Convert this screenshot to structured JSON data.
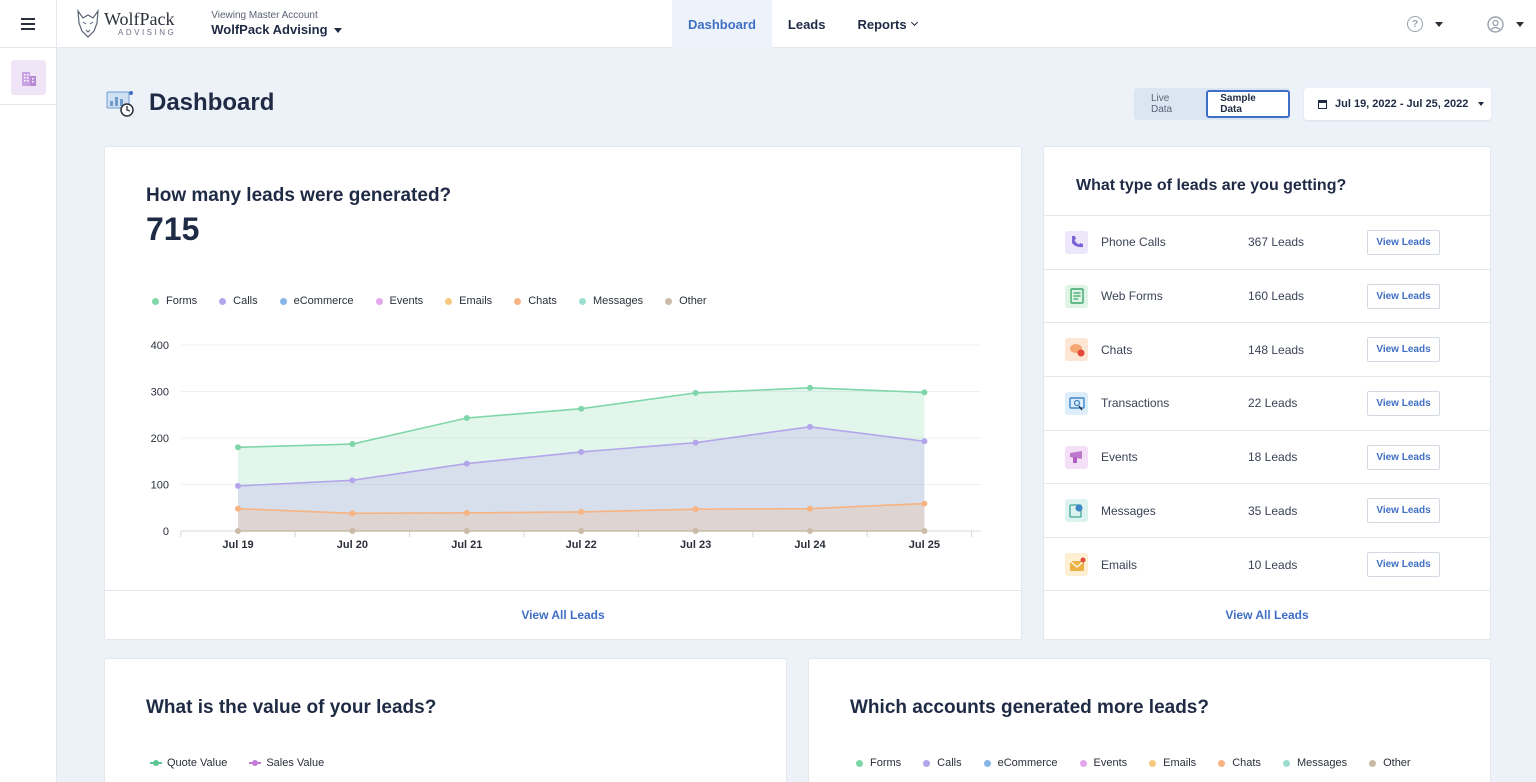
{
  "header": {
    "brand_name": "WolfPack",
    "brand_sub": "ADVISING",
    "account_label": "Viewing Master Account",
    "account_value": "WolfPack Advising",
    "nav": [
      {
        "label": "Dashboard",
        "active": true
      },
      {
        "label": "Leads",
        "active": false
      },
      {
        "label": "Reports",
        "active": false
      }
    ]
  },
  "page": {
    "title": "Dashboard",
    "toggle": {
      "live": "Live Data",
      "sample": "Sample Data"
    },
    "date_range": "Jul 19, 2022 - Jul 25, 2022"
  },
  "leads_card": {
    "title": "How many leads were generated?",
    "total": "715",
    "legend": [
      {
        "name": "Forms",
        "color": "#7fd6a9"
      },
      {
        "name": "Calls",
        "color": "#b3a6ea"
      },
      {
        "name": "eCommerce",
        "color": "#86b5e8"
      },
      {
        "name": "Events",
        "color": "#e3a6ec"
      },
      {
        "name": "Emails",
        "color": "#f6c97e"
      },
      {
        "name": "Chats",
        "color": "#f7b382"
      },
      {
        "name": "Messages",
        "color": "#9ddcd0"
      },
      {
        "name": "Other",
        "color": "#c9bba6"
      }
    ],
    "footer": "View All Leads"
  },
  "chart_data": {
    "type": "area",
    "title": "",
    "categories": [
      "Jul 19",
      "Jul 20",
      "Jul 21",
      "Jul 22",
      "Jul 23",
      "Jul 24",
      "Jul 25"
    ],
    "yticks": [
      "0",
      "100",
      "200",
      "300",
      "400"
    ],
    "ylim": [
      0,
      400
    ],
    "series": [
      {
        "name": "Forms",
        "color": "#7fd6a9",
        "values": [
          180,
          187,
          243,
          263,
          297,
          308,
          298
        ]
      },
      {
        "name": "Calls",
        "color": "#b3a6ea",
        "values": [
          97,
          109,
          145,
          170,
          190,
          224,
          193
        ]
      },
      {
        "name": "Chats",
        "color": "#f7b382",
        "values": [
          48,
          38,
          39,
          41,
          47,
          48,
          59
        ]
      },
      {
        "name": "Other",
        "color": "#c9bba6",
        "values": [
          0,
          0,
          0,
          0,
          0,
          0,
          0
        ]
      }
    ]
  },
  "types_card": {
    "title": "What type of leads are you getting?",
    "button_label": "View Leads",
    "rows": [
      {
        "name": "Phone Calls",
        "count": "367 Leads",
        "icon": "phone-icon",
        "bg": "#ece7fb",
        "fg": "#7d65d6"
      },
      {
        "name": "Web Forms",
        "count": "160 Leads",
        "icon": "form-icon",
        "bg": "#dff3e6",
        "fg": "#3ea86a"
      },
      {
        "name": "Chats",
        "count": "148 Leads",
        "icon": "chat-icon",
        "bg": "#fde6d4",
        "fg": "#ef8a4a"
      },
      {
        "name": "Transactions",
        "count": "22 Leads",
        "icon": "transaction-icon",
        "bg": "#ddeefa",
        "fg": "#3f86c9"
      },
      {
        "name": "Events",
        "count": "18 Leads",
        "icon": "event-icon",
        "bg": "#f4e0f6",
        "fg": "#b15fc2"
      },
      {
        "name": "Messages",
        "count": "35 Leads",
        "icon": "message-icon",
        "bg": "#dcf3ef",
        "fg": "#3fa79a"
      },
      {
        "name": "Emails",
        "count": "10 Leads",
        "icon": "email-icon",
        "bg": "#fdf0d2",
        "fg": "#e8a82e"
      }
    ],
    "footer": "View All Leads"
  },
  "value_card": {
    "title": "What is the value of your leads?",
    "legend": [
      {
        "name": "Quote Value",
        "color": "#5bc795"
      },
      {
        "name": "Sales Value",
        "color": "#c47bd6"
      }
    ]
  },
  "accounts_card": {
    "title": "Which accounts generated more leads?",
    "legend": [
      {
        "name": "Forms",
        "color": "#7fd6a9"
      },
      {
        "name": "Calls",
        "color": "#b3a6ea"
      },
      {
        "name": "eCommerce",
        "color": "#86b5e8"
      },
      {
        "name": "Events",
        "color": "#e3a6ec"
      },
      {
        "name": "Emails",
        "color": "#f6c97e"
      },
      {
        "name": "Chats",
        "color": "#f7b382"
      },
      {
        "name": "Messages",
        "color": "#9ddcd0"
      },
      {
        "name": "Other",
        "color": "#c9bba6"
      }
    ]
  }
}
